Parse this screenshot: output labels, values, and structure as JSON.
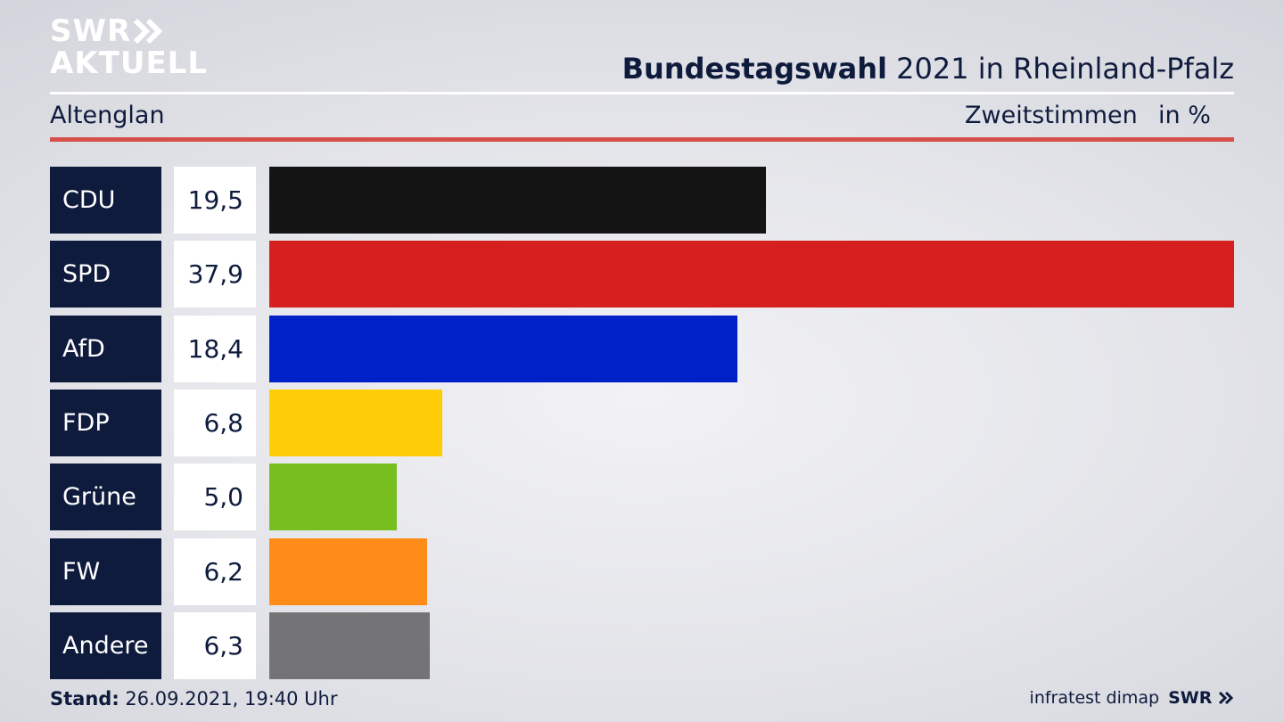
{
  "header": {
    "logo_line1": "SWR",
    "logo_line2": "AKTUELL",
    "title_bold": "Bundestagswahl",
    "title_rest": " 2021 in Rheinland-Pfalz",
    "region": "Altenglan",
    "vote_type": "Zweitstimmen",
    "unit": "in %"
  },
  "colors": {
    "navy": "#0f1b3d",
    "accent_red_rule": "#d6504a"
  },
  "chart_data": {
    "type": "bar",
    "orientation": "horizontal",
    "categories": [
      "CDU",
      "SPD",
      "AfD",
      "FDP",
      "Grüne",
      "FW",
      "Andere"
    ],
    "values": [
      19.5,
      37.9,
      18.4,
      6.8,
      5.0,
      6.2,
      6.3
    ],
    "value_labels": [
      "19,5",
      "37,9",
      "18,4",
      "6,8",
      "5,0",
      "6,2",
      "6,3"
    ],
    "colors": [
      "#141414",
      "#d62020",
      "#0021c8",
      "#ffcc08",
      "#78be1e",
      "#ff8c19",
      "#747476"
    ],
    "xlim": [
      0,
      37.9
    ]
  },
  "footer": {
    "stand_label": "Stand:",
    "stand_value": " 26.09.2021, 19:40 Uhr",
    "source": "infratest dimap",
    "brand": "SWR"
  }
}
